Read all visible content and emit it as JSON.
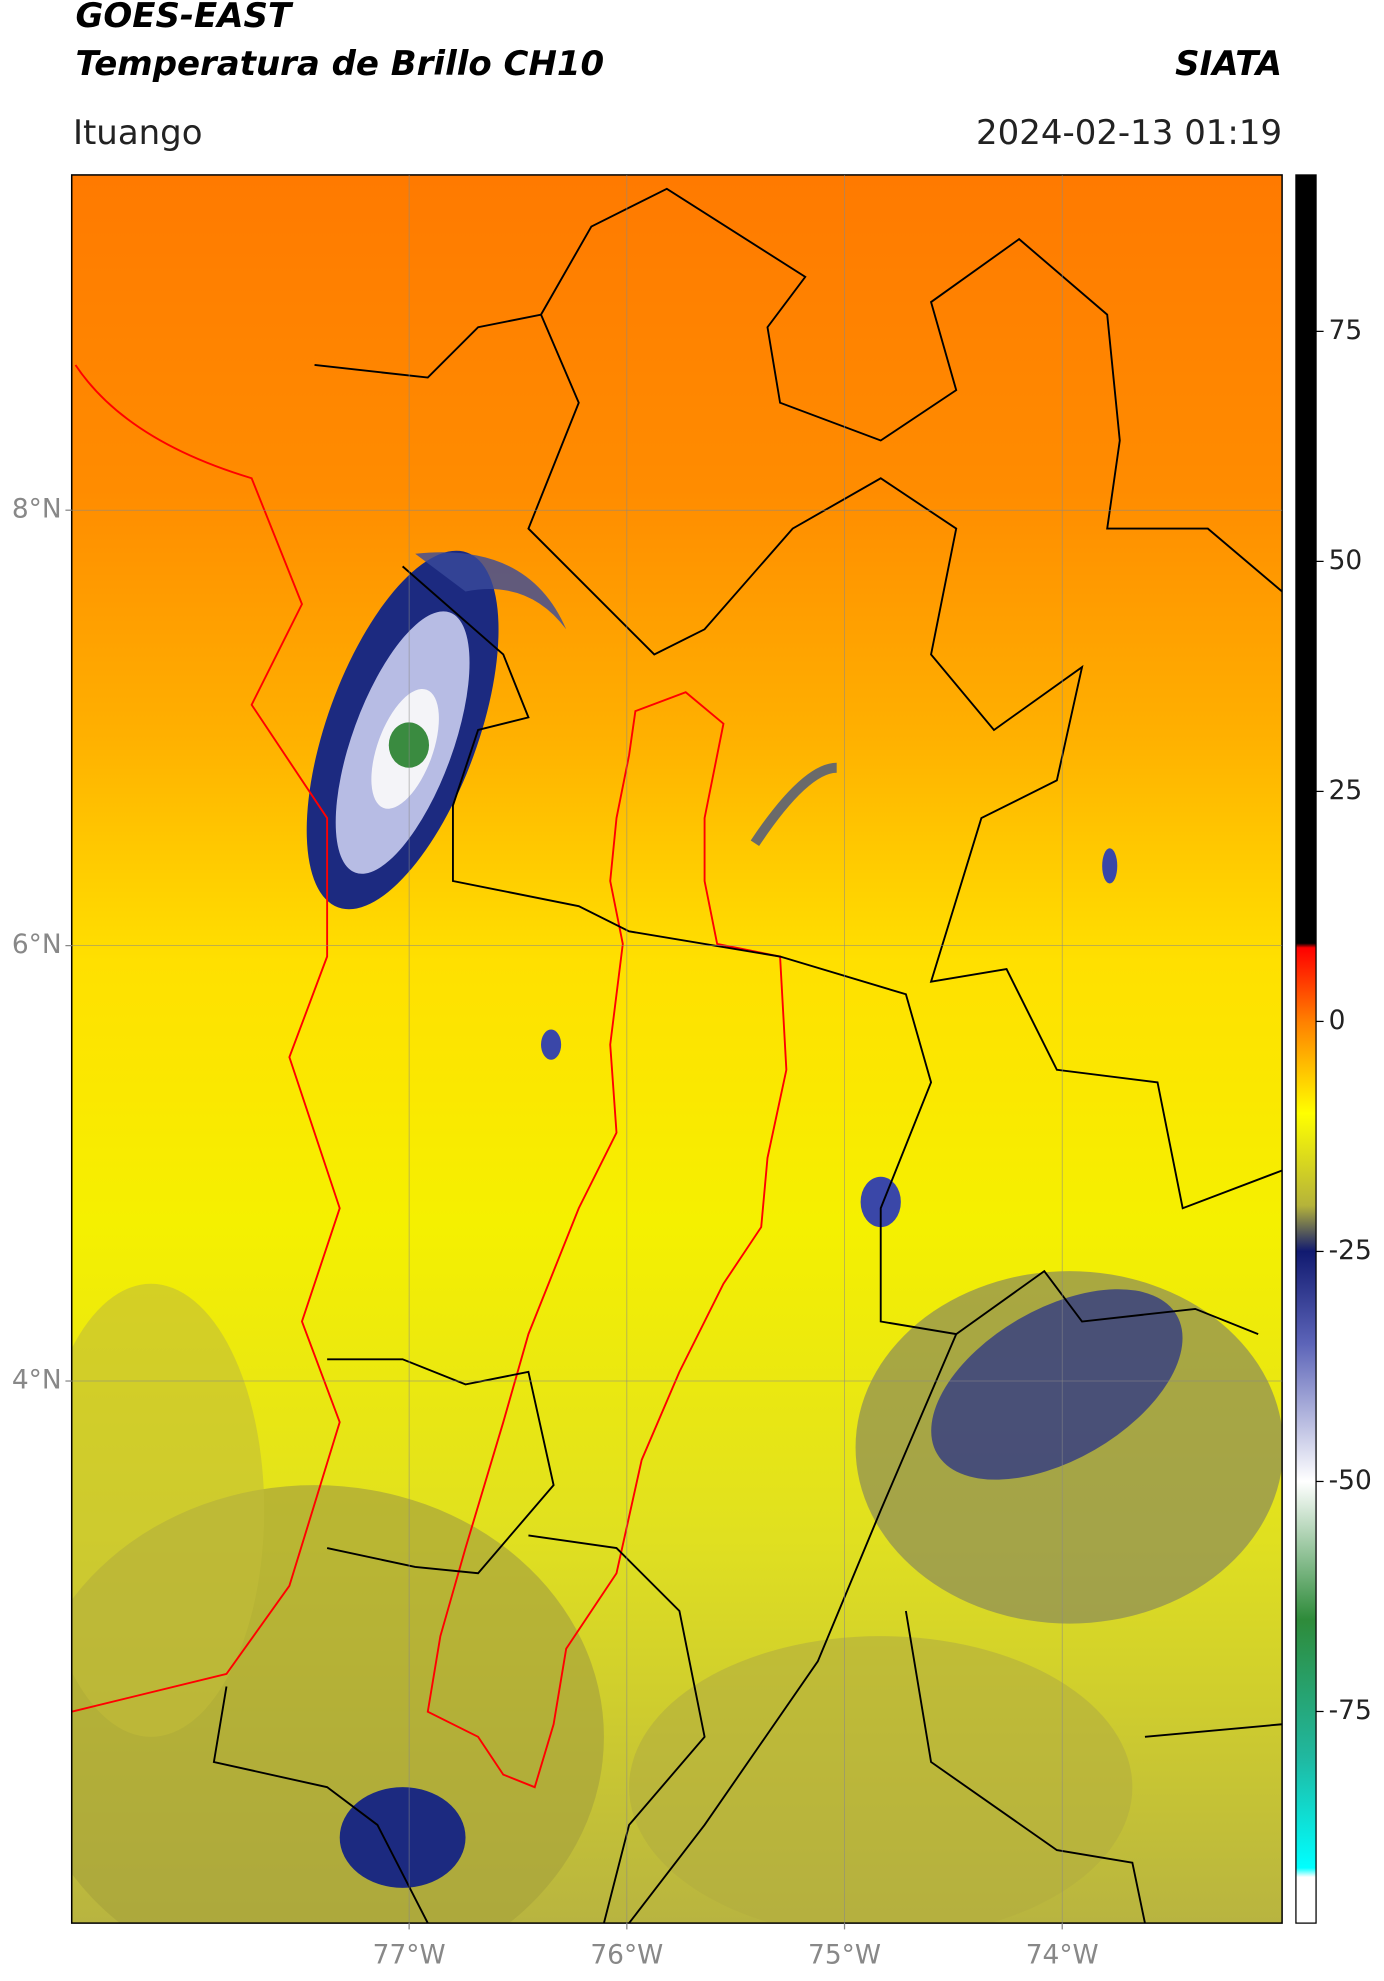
{
  "header": {
    "title": "GOES-EAST",
    "subtitle": "Temperatura de Brillo CH10",
    "source": "SIATA",
    "place": "Ituango",
    "datetime": "2024-02-13 01:19"
  },
  "map": {
    "lat_lim": [
      1.51,
      9.54
    ],
    "lon_lim": [
      -78.55,
      -72.99
    ],
    "lat_ticks": [
      {
        "value": 8,
        "label": "8°N"
      },
      {
        "value": 6,
        "label": "6°N"
      },
      {
        "value": 4,
        "label": "4°N"
      }
    ],
    "lon_ticks": [
      {
        "value": -77,
        "label": "77°W"
      },
      {
        "value": -76,
        "label": "76°W"
      },
      {
        "value": -75,
        "label": "75°W"
      },
      {
        "value": -74,
        "label": "74°W"
      }
    ],
    "grid": true
  },
  "colorbar": {
    "lim": [
      -98,
      92
    ],
    "ticks": [
      75,
      50,
      25,
      0,
      -25,
      -50,
      -75
    ],
    "stops": [
      {
        "value": 92,
        "color": "#000000"
      },
      {
        "value": 8.5,
        "color": "#000000"
      },
      {
        "value": 8,
        "color": "#ff0000"
      },
      {
        "value": 0,
        "color": "#ff8000"
      },
      {
        "value": -10,
        "color": "#ffff00"
      },
      {
        "value": -20,
        "color": "#b5b33a"
      },
      {
        "value": -25,
        "color": "#111a70"
      },
      {
        "value": -35,
        "color": "#5c64b8"
      },
      {
        "value": -50,
        "color": "#ffffff"
      },
      {
        "value": -65,
        "color": "#2e8b3a"
      },
      {
        "value": -80,
        "color": "#20b8a0"
      },
      {
        "value": -92,
        "color": "#00ffff"
      },
      {
        "value": -93,
        "color": "#ffffff"
      },
      {
        "value": -98,
        "color": "#ffffff"
      }
    ]
  }
}
